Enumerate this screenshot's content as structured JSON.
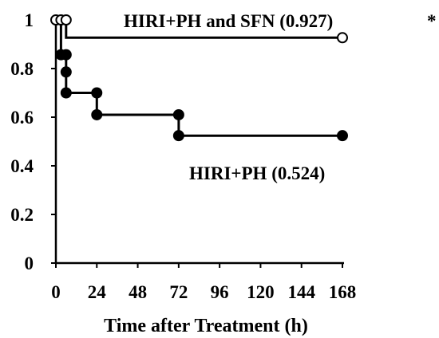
{
  "chart_data": {
    "type": "line",
    "step": true,
    "xlabel": "Time after Treatment (h)",
    "ylabel": "",
    "xlim": [
      0,
      168
    ],
    "ylim": [
      0,
      1
    ],
    "x_ticks": [
      "0",
      "24",
      "48",
      "72",
      "96",
      "120",
      "144",
      "168"
    ],
    "y_ticks": [
      "0",
      "0.2",
      "0.4",
      "0.6",
      "0.8",
      "1"
    ],
    "grid": false,
    "series": [
      {
        "name": "HIRI+PH and SFN (0.927)",
        "marker": "open-circle",
        "color": "#000000",
        "points": [
          {
            "x": 0,
            "y": 1.0
          },
          {
            "x": 3,
            "y": 1.0
          },
          {
            "x": 6,
            "y": 1.0
          },
          {
            "x": 6,
            "y": 0.927
          },
          {
            "x": 168,
            "y": 0.927
          }
        ],
        "markers": [
          {
            "x": 0,
            "y": 1.0
          },
          {
            "x": 3,
            "y": 1.0
          },
          {
            "x": 6,
            "y": 1.0
          },
          {
            "x": 168,
            "y": 0.927
          }
        ]
      },
      {
        "name": "HIRI+PH (0.524)",
        "marker": "filled-circle",
        "color": "#000000",
        "points": [
          {
            "x": 0,
            "y": 1.0
          },
          {
            "x": 3,
            "y": 1.0
          },
          {
            "x": 3,
            "y": 0.857
          },
          {
            "x": 6,
            "y": 0.857
          },
          {
            "x": 6,
            "y": 0.786
          },
          {
            "x": 6,
            "y": 0.7
          },
          {
            "x": 24,
            "y": 0.7
          },
          {
            "x": 24,
            "y": 0.61
          },
          {
            "x": 72,
            "y": 0.61
          },
          {
            "x": 72,
            "y": 0.524
          },
          {
            "x": 168,
            "y": 0.524
          }
        ],
        "markers": [
          {
            "x": 3,
            "y": 0.857
          },
          {
            "x": 6,
            "y": 0.857
          },
          {
            "x": 6,
            "y": 0.786
          },
          {
            "x": 6,
            "y": 0.7
          },
          {
            "x": 24,
            "y": 0.7
          },
          {
            "x": 24,
            "y": 0.61
          },
          {
            "x": 72,
            "y": 0.61
          },
          {
            "x": 72,
            "y": 0.524
          },
          {
            "x": 168,
            "y": 0.524
          }
        ]
      }
    ],
    "annotations": {
      "significance": "*"
    }
  }
}
